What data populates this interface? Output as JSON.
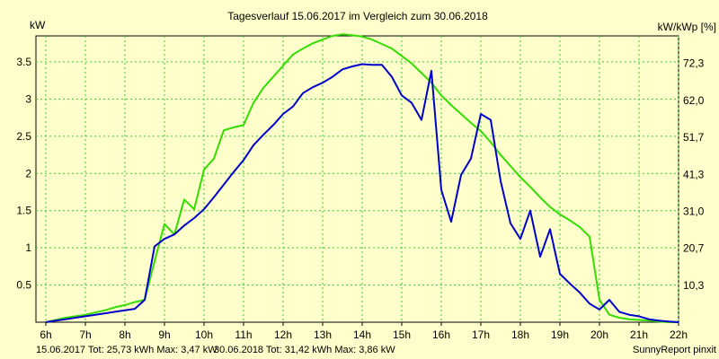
{
  "chart_data": {
    "type": "line",
    "title": "Tagesverlauf 15.06.2017 im Vergleich zum 30.06.2018",
    "ylabel_left": "kW",
    "ylabel_right": "kW/kWp [%]",
    "xlim": [
      5.75,
      22.0
    ],
    "ylim": [
      0,
      3.85
    ],
    "x_ticks": [
      6,
      7,
      8,
      9,
      10,
      11,
      12,
      13,
      14,
      15,
      16,
      17,
      18,
      19,
      20,
      21,
      22
    ],
    "x_tick_labels": [
      "6h",
      "7h",
      "8h",
      "9h",
      "10h",
      "11h",
      "12h",
      "13h",
      "14h",
      "15h",
      "16h",
      "17h",
      "18h",
      "19h",
      "20h",
      "21h",
      "22h"
    ],
    "y_ticks": [
      0.5,
      1,
      1.5,
      2,
      2.5,
      3,
      3.5
    ],
    "y_tick_labels": [
      "0.5",
      "1",
      "1.5",
      "2",
      "2.5",
      "3",
      "3.5"
    ],
    "y2_ticks": [
      10.3,
      20.7,
      31.0,
      41.3,
      51.7,
      62.0,
      72.3
    ],
    "y2_tick_labels": [
      "10,3",
      "20,7",
      "31,0",
      "41,3",
      "51,7",
      "62,0",
      "72,3"
    ],
    "y2_lim": [
      0,
      80
    ],
    "grid": true,
    "series": [
      {
        "name": "15.06.2017",
        "color": "#0000cc",
        "x": [
          6.0,
          6.25,
          6.5,
          6.75,
          7.0,
          7.25,
          7.5,
          7.75,
          8.0,
          8.25,
          8.5,
          8.75,
          9.0,
          9.25,
          9.5,
          9.75,
          10.0,
          10.25,
          10.5,
          10.75,
          11.0,
          11.25,
          11.5,
          11.75,
          12.0,
          12.25,
          12.5,
          12.75,
          13.0,
          13.25,
          13.5,
          13.75,
          14.0,
          14.25,
          14.5,
          14.75,
          15.0,
          15.25,
          15.5,
          15.75,
          16.0,
          16.25,
          16.5,
          16.75,
          17.0,
          17.25,
          17.5,
          17.75,
          18.0,
          18.25,
          18.5,
          18.75,
          19.0,
          19.25,
          19.5,
          19.75,
          20.0,
          20.25,
          20.5,
          20.75,
          21.0,
          21.25,
          21.5,
          21.75,
          22.0
        ],
        "y": [
          0.0,
          0.02,
          0.04,
          0.06,
          0.08,
          0.1,
          0.12,
          0.14,
          0.16,
          0.18,
          0.3,
          1.02,
          1.12,
          1.18,
          1.3,
          1.4,
          1.52,
          1.68,
          1.85,
          2.02,
          2.18,
          2.38,
          2.52,
          2.65,
          2.8,
          2.9,
          3.08,
          3.16,
          3.22,
          3.3,
          3.4,
          3.44,
          3.47,
          3.46,
          3.46,
          3.3,
          3.05,
          2.95,
          2.72,
          3.38,
          1.78,
          1.35,
          1.98,
          2.2,
          2.8,
          2.72,
          1.9,
          1.33,
          1.12,
          1.5,
          0.88,
          1.25,
          0.65,
          0.52,
          0.4,
          0.25,
          0.17,
          0.3,
          0.14,
          0.1,
          0.08,
          0.04,
          0.02,
          0.01,
          0.0
        ]
      },
      {
        "name": "30.06.2018",
        "color": "#33dd00",
        "x": [
          6.0,
          6.25,
          6.5,
          6.75,
          7.0,
          7.25,
          7.5,
          7.75,
          8.0,
          8.25,
          8.5,
          8.75,
          9.0,
          9.25,
          9.5,
          9.75,
          10.0,
          10.25,
          10.5,
          10.75,
          11.0,
          11.25,
          11.5,
          11.75,
          12.0,
          12.25,
          12.5,
          12.75,
          13.0,
          13.25,
          13.5,
          13.75,
          14.0,
          14.25,
          14.5,
          14.75,
          15.0,
          15.25,
          15.5,
          15.75,
          16.0,
          16.25,
          16.5,
          16.75,
          17.0,
          17.25,
          17.5,
          17.75,
          18.0,
          18.25,
          18.5,
          18.75,
          19.0,
          19.25,
          19.5,
          19.75,
          20.0,
          20.25,
          20.5,
          20.75,
          21.0,
          21.25,
          21.5,
          21.75,
          22.0
        ],
        "y": [
          0.0,
          0.03,
          0.06,
          0.08,
          0.1,
          0.13,
          0.16,
          0.2,
          0.23,
          0.27,
          0.3,
          0.82,
          1.32,
          1.18,
          1.65,
          1.52,
          2.05,
          2.2,
          2.58,
          2.62,
          2.65,
          2.95,
          3.15,
          3.3,
          3.45,
          3.6,
          3.68,
          3.75,
          3.8,
          3.85,
          3.87,
          3.86,
          3.84,
          3.8,
          3.74,
          3.68,
          3.58,
          3.48,
          3.35,
          3.22,
          3.05,
          2.92,
          2.8,
          2.68,
          2.57,
          2.42,
          2.25,
          2.1,
          1.95,
          1.82,
          1.68,
          1.55,
          1.45,
          1.37,
          1.28,
          1.15,
          0.3,
          0.1,
          0.06,
          0.04,
          0.03,
          0.02,
          0.01,
          0.0,
          0.0
        ]
      }
    ],
    "footer": {
      "series1": "15.06.2017 Tot: 25,73 kWh Max: 3,47 kW",
      "series2": "30.06.2018 Tot: 31,42 kWh Max: 3,86 kW",
      "credit": "SunnyReport pinxit"
    }
  }
}
